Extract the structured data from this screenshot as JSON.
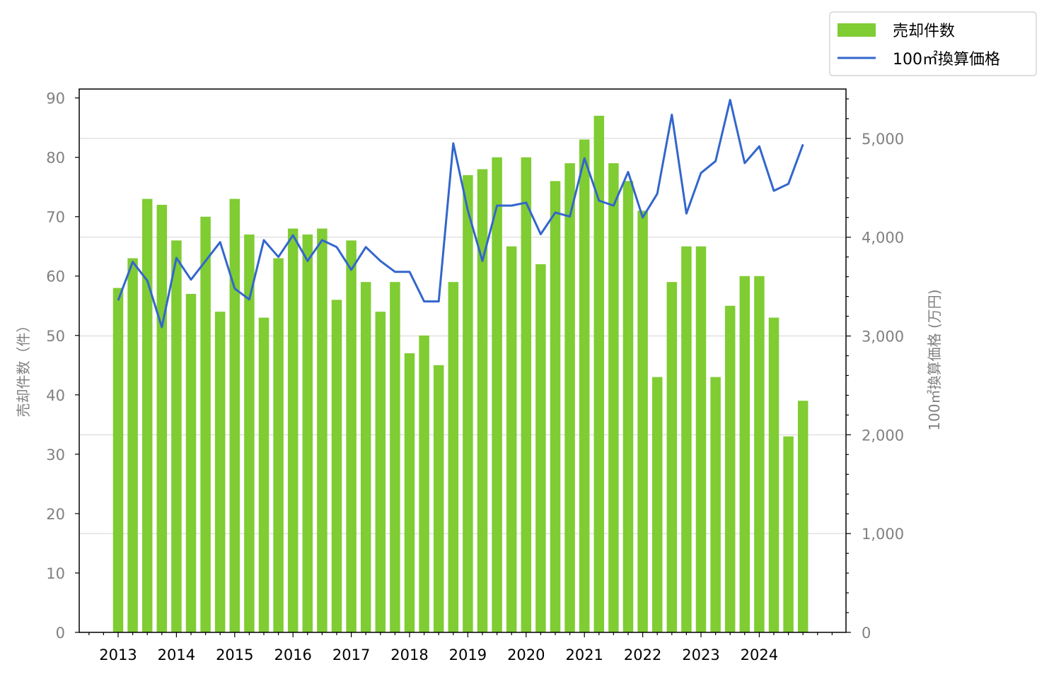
{
  "chart_data": {
    "type": "bar",
    "title": "",
    "x_tick_labels": [
      "2013",
      "2014",
      "2015",
      "2016",
      "2017",
      "2018",
      "2019",
      "2020",
      "2021",
      "2022",
      "2023",
      "2024"
    ],
    "x_start_year": 2013,
    "quarters_per_year": 4,
    "series": [
      {
        "name": "売却件数",
        "type": "bar",
        "axis": "left",
        "color": "#80cc33",
        "values": [
          58,
          63,
          73,
          72,
          66,
          57,
          70,
          54,
          73,
          67,
          53,
          63,
          68,
          67,
          68,
          56,
          66,
          59,
          54,
          59,
          47,
          50,
          45,
          59,
          77,
          78,
          80,
          65,
          80,
          62,
          76,
          79,
          83,
          87,
          79,
          76,
          71,
          43,
          59,
          65,
          65,
          43,
          55,
          60,
          60,
          53,
          33,
          39
        ]
      },
      {
        "name": "100㎡換算価格",
        "type": "line",
        "axis": "right",
        "color": "#3366cc",
        "values": [
          3360,
          3750,
          3560,
          3090,
          3790,
          3570,
          3760,
          3950,
          3480,
          3370,
          3970,
          3800,
          4020,
          3760,
          3970,
          3900,
          3670,
          3900,
          3760,
          3650,
          3650,
          3350,
          3350,
          4950,
          4270,
          3760,
          4320,
          4320,
          4350,
          4030,
          4250,
          4210,
          4800,
          4370,
          4320,
          4660,
          4200,
          4440,
          5240,
          4240,
          4650,
          4770,
          5390,
          4750,
          4920,
          4470,
          4540,
          4940
        ]
      }
    ],
    "left_axis": {
      "label": "売却件数（件）",
      "ylim": [
        0,
        91.5
      ],
      "ticks": [
        0,
        10,
        20,
        30,
        40,
        50,
        60,
        70,
        80,
        90
      ]
    },
    "right_axis": {
      "label": "100㎡換算価格 (万円)",
      "ylim": [
        0,
        5500
      ],
      "ticks": [
        0,
        1000,
        2000,
        3000,
        4000,
        5000
      ],
      "tick_labels": [
        "0",
        "1,000",
        "2,000",
        "3,000",
        "4,000",
        "5,000"
      ]
    },
    "grid": "horizontal, right axis",
    "legend_position": "top-right"
  },
  "colors": {
    "bar": "#80cc33",
    "line": "#3366cc",
    "left_tick_text": "#808080",
    "right_tick_text": "#808080",
    "x_tick_text": "#000000",
    "grid": "#d3d3d3"
  }
}
